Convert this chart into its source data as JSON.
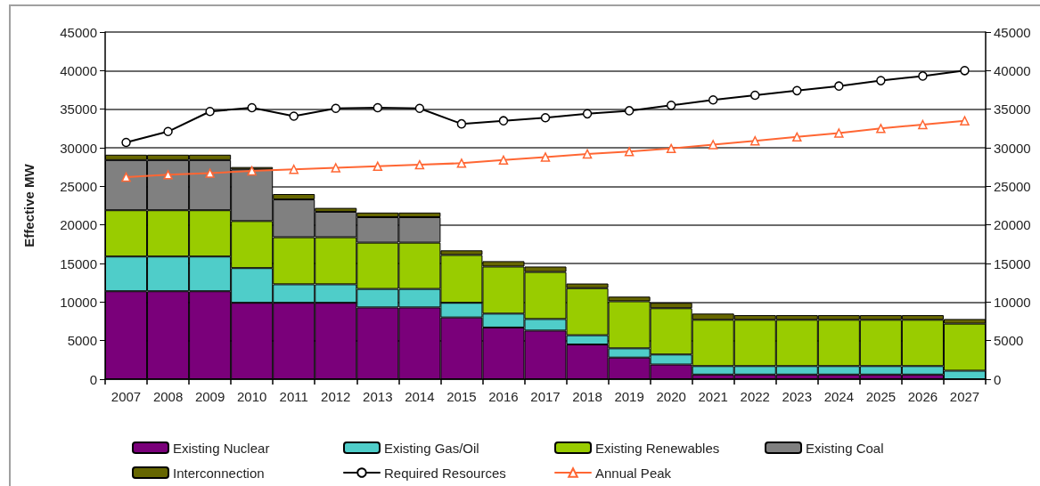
{
  "chart_data": {
    "type": "bar",
    "ylabel": "Effective MW",
    "stacked": true,
    "grid": "y",
    "legend": "bottom",
    "categories": [
      "2007",
      "2008",
      "2009",
      "2010",
      "2011",
      "2012",
      "2013",
      "2014",
      "2015",
      "2016",
      "2017",
      "2018",
      "2019",
      "2020",
      "2021",
      "2022",
      "2023",
      "2024",
      "2025",
      "2026",
      "2027"
    ],
    "series": [
      {
        "name": "Existing Nuclear",
        "color": "#7a007a",
        "values": [
          11400,
          11400,
          11400,
          9900,
          9900,
          9900,
          9300,
          9300,
          8000,
          6700,
          6300,
          4500,
          2800,
          1900,
          600,
          600,
          600,
          600,
          600,
          600,
          null
        ]
      },
      {
        "name": "Existing Gas/Oil",
        "color": "#4fcdc9",
        "values": [
          4500,
          4500,
          4500,
          4500,
          2400,
          2400,
          2400,
          2400,
          1900,
          1800,
          1500,
          1200,
          1200,
          1300,
          1100,
          1100,
          1100,
          1100,
          1100,
          1100,
          1100
        ]
      },
      {
        "name": "Existing Renewables",
        "color": "#99cc00",
        "values": [
          6000,
          6000,
          6000,
          6100,
          6100,
          6100,
          6000,
          6000,
          6200,
          6100,
          6100,
          6100,
          6100,
          6000,
          6000,
          6000,
          6000,
          6000,
          6000,
          6000,
          6100
        ]
      },
      {
        "name": "Existing Coal",
        "color": "#808080",
        "values": [
          6500,
          6500,
          6500,
          6700,
          4900,
          3300,
          3300,
          3300,
          null,
          null,
          null,
          null,
          null,
          null,
          null,
          null,
          null,
          null,
          null,
          null,
          null
        ]
      },
      {
        "name": "Interconnection",
        "color": "#666600",
        "values": [
          700,
          700,
          700,
          300,
          700,
          500,
          600,
          600,
          600,
          700,
          700,
          600,
          600,
          700,
          800,
          600,
          600,
          600,
          600,
          600,
          600
        ]
      },
      {
        "name": "Required Resources",
        "type": "line",
        "color": "#000000",
        "marker": "circle",
        "values": [
          30700,
          32100,
          34700,
          35200,
          34100,
          35100,
          35200,
          35100,
          33100,
          33500,
          33900,
          34400,
          34800,
          35500,
          36200,
          36800,
          37400,
          38000,
          38700,
          39300,
          40000
        ]
      },
      {
        "name": "Annual Peak",
        "type": "line",
        "color": "#ff6633",
        "marker": "triangle",
        "values": [
          26200,
          26500,
          26700,
          27000,
          27200,
          27400,
          27600,
          27800,
          28000,
          28400,
          28800,
          29200,
          29500,
          29900,
          30400,
          30900,
          31400,
          31900,
          32500,
          33000,
          33500
        ]
      }
    ],
    "ylim": [
      0,
      45000
    ],
    "yticks": [
      0,
      5000,
      10000,
      15000,
      20000,
      25000,
      30000,
      35000,
      40000,
      45000
    ],
    "y2lim": [
      0,
      45000
    ],
    "y2ticks": [
      0,
      5000,
      10000,
      15000,
      20000,
      25000,
      30000,
      35000,
      40000,
      45000
    ]
  }
}
